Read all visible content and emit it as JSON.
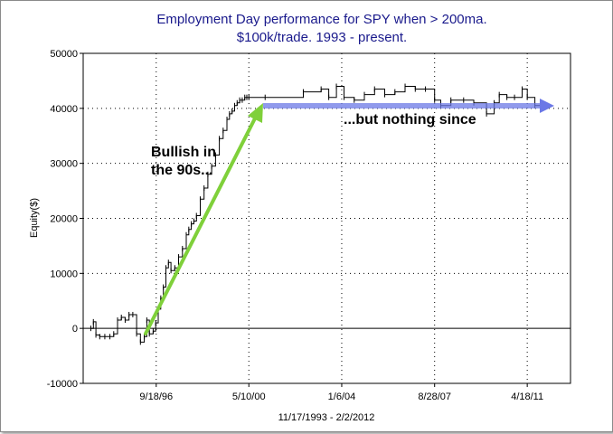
{
  "chart_data": {
    "type": "line",
    "title": "Employment Day performance for SPY when > 200ma.",
    "subtitle": "$100k/trade. 1993 - present.",
    "xlabel": "11/17/1993 - 2/2/2012",
    "ylabel": "Equity($)",
    "ylim": [
      -10000,
      50000
    ],
    "yticks": [
      -10000,
      0,
      10000,
      20000,
      30000,
      40000,
      50000
    ],
    "xlim": [
      1993.85,
      2013.0
    ],
    "xticks": [
      {
        "label": "9/18/96",
        "value": 1996.72
      },
      {
        "label": "5/10/00",
        "value": 2000.36
      },
      {
        "label": "1/6/04",
        "value": 2004.01
      },
      {
        "label": "8/28/07",
        "value": 2007.66
      },
      {
        "label": "4/18/11",
        "value": 2011.3
      }
    ],
    "grid": true,
    "series": [
      {
        "name": "Equity",
        "x": [
          1994.15,
          1994.25,
          1994.35,
          1994.5,
          1994.7,
          1994.9,
          1995.05,
          1995.2,
          1995.35,
          1995.5,
          1995.65,
          1995.8,
          1995.95,
          1996.1,
          1996.25,
          1996.35,
          1996.45,
          1996.6,
          1996.7,
          1996.8,
          1996.9,
          1997.0,
          1997.1,
          1997.2,
          1997.3,
          1997.45,
          1997.6,
          1997.75,
          1997.9,
          1998.0,
          1998.1,
          1998.2,
          1998.3,
          1998.45,
          1998.6,
          1998.75,
          1998.9,
          1999.05,
          1999.2,
          1999.35,
          1999.5,
          1999.6,
          1999.7,
          1999.8,
          1999.9,
          2000.0,
          2000.1,
          2000.2,
          2000.28,
          2000.36,
          2001.0,
          2002.5,
          2003.2,
          2003.5,
          2003.8,
          2004.1,
          2004.5,
          2004.9,
          2005.3,
          2005.7,
          2006.1,
          2006.5,
          2006.9,
          2007.3,
          2007.66,
          2007.9,
          2008.3,
          2008.8,
          2009.2,
          2009.7,
          2010.0,
          2010.2,
          2010.5,
          2010.8,
          2011.1,
          2011.3,
          2011.6,
          2011.9,
          2012.1
        ],
        "values": [
          0,
          1200,
          -1200,
          -1500,
          -1500,
          -1500,
          -1000,
          1500,
          2000,
          1500,
          2500,
          2500,
          -1000,
          -2500,
          -1500,
          1500,
          -1000,
          -500,
          1000,
          3500,
          5500,
          7500,
          11000,
          12000,
          10500,
          11000,
          13000,
          14500,
          17000,
          18000,
          19000,
          19500,
          20500,
          23500,
          25500,
          28000,
          29500,
          31500,
          34500,
          36000,
          38000,
          39000,
          39500,
          40500,
          41000,
          41500,
          41500,
          42000,
          42000,
          42000,
          42000,
          43000,
          43500,
          42000,
          44000,
          42000,
          41500,
          42500,
          43500,
          42500,
          43000,
          44000,
          43500,
          43500,
          41500,
          40500,
          41500,
          41500,
          41000,
          39000,
          41000,
          42500,
          42000,
          42000,
          43500,
          42000,
          40500,
          40500,
          40500
        ]
      }
    ],
    "annotations": [
      {
        "text": "Bullish in",
        "color": "#7fd03a"
      },
      {
        "text": "the 90s...",
        "color": "#7fd03a"
      },
      {
        "text": "...but nothing since",
        "color": "#6b78e6"
      }
    ],
    "colors": {
      "line": "#000000",
      "grid": "#000000",
      "title": "#1a1a8c",
      "green_arrow": "#7fd03a",
      "blue_arrow": "#6b78e6"
    }
  }
}
